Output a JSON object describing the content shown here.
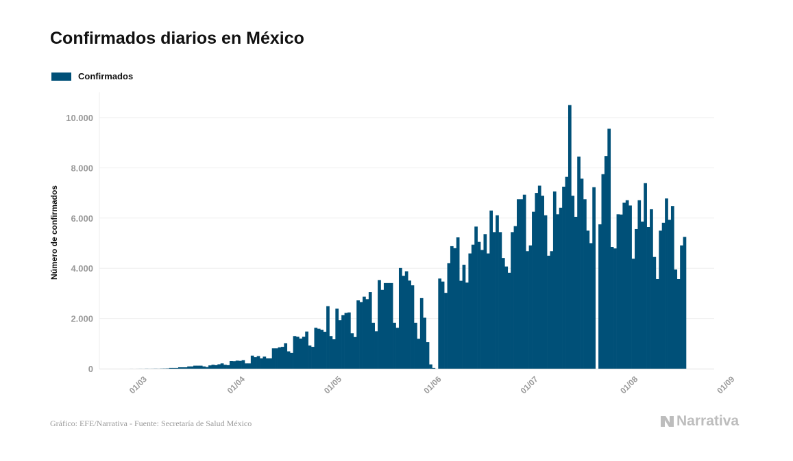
{
  "title": "Confirmados diarios en México",
  "source": "Gráfico: EFE/Narrativa - Fuente: Secretaría de Salud México",
  "logo": "Narrativa",
  "colors": {
    "bar": "#005078",
    "grid": "#eeeeee",
    "tick": "#999999"
  },
  "chart_data": {
    "type": "bar",
    "title": "Confirmados diarios en México",
    "xlabel": "",
    "ylabel": "Número de confirmados",
    "legend": [
      {
        "name": "Confirmados",
        "position": "top-left"
      }
    ],
    "ylim": [
      0,
      11000
    ],
    "grid": true,
    "yticks": [
      {
        "value": 0,
        "label": "0"
      },
      {
        "value": 2000,
        "label": "2.000"
      },
      {
        "value": 4000,
        "label": "4.000"
      },
      {
        "value": 6000,
        "label": "6.000"
      },
      {
        "value": 8000,
        "label": "8.000"
      },
      {
        "value": 10000,
        "label": "10.000"
      }
    ],
    "xticks": [
      {
        "index": 3.6,
        "label": "01/03"
      },
      {
        "index": 36,
        "label": "01/04"
      },
      {
        "index": 68,
        "label": "01/05"
      },
      {
        "index": 101,
        "label": "01/06"
      },
      {
        "index": 133,
        "label": "01/07"
      },
      {
        "index": 166,
        "label": "01/08"
      },
      {
        "index": 198,
        "label": "01/09"
      }
    ],
    "series": [
      {
        "name": "Confirmados",
        "values": [
          0,
          1,
          0,
          1,
          2,
          1,
          4,
          2,
          3,
          5,
          3,
          7,
          9,
          12,
          30,
          30,
          30,
          55,
          55,
          55,
          90,
          90,
          120,
          120,
          120,
          90,
          65,
          130,
          155,
          140,
          175,
          210,
          155,
          140,
          300,
          295,
          320,
          310,
          340,
          210,
          210,
          520,
          460,
          500,
          410,
          480,
          410,
          410,
          810,
          810,
          850,
          870,
          1010,
          690,
          630,
          1300,
          1270,
          1200,
          1270,
          1480,
          920,
          870,
          1630,
          1590,
          1550,
          1470,
          2490,
          1300,
          1170,
          2390,
          1930,
          2130,
          2220,
          2240,
          1410,
          1260,
          2720,
          2650,
          2870,
          2770,
          3050,
          1830,
          1490,
          3530,
          3140,
          3410,
          3410,
          3410,
          1830,
          1630,
          4010,
          3700,
          3880,
          3510,
          3320,
          1830,
          1190,
          2810,
          2030,
          1060,
          170,
          30,
          null,
          3590,
          3470,
          3020,
          4200,
          4880,
          4800,
          5230,
          3500,
          4140,
          3430,
          4590,
          4940,
          5660,
          5050,
          4730,
          5360,
          4590,
          6300,
          5440,
          6110,
          5440,
          4410,
          4070,
          3820,
          5440,
          5680,
          6750,
          6750,
          6930,
          4680,
          4910,
          6250,
          7000,
          7290,
          6890,
          6110,
          4500,
          4680,
          7060,
          6150,
          6410,
          7250,
          7640,
          10500,
          6890,
          6050,
          8450,
          7570,
          6750,
          5500,
          5000,
          7230,
          null,
          5750,
          7750,
          8470,
          9560,
          4850,
          4790,
          6150,
          6140,
          6610,
          6710,
          6500,
          4380,
          5560,
          6710,
          5860,
          7390,
          5640,
          6350,
          4450,
          3570,
          5500,
          5810,
          6780,
          5930,
          6480,
          3950,
          3570,
          4910,
          5250
        ]
      }
    ]
  }
}
